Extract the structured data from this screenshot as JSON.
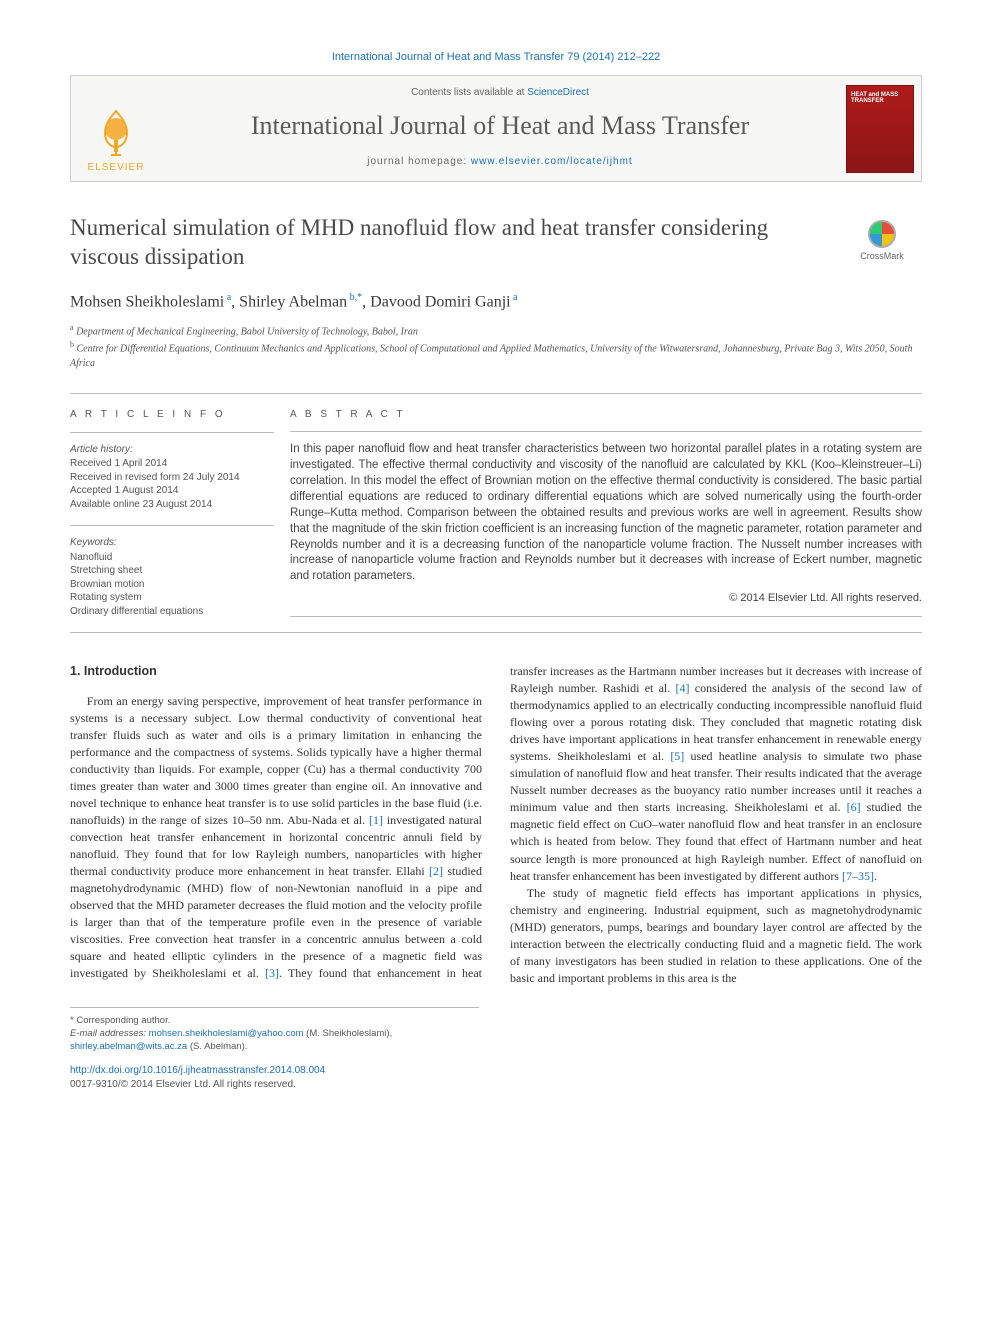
{
  "citation": "International Journal of Heat and Mass Transfer 79 (2014) 212–222",
  "header": {
    "contents_prefix": "Contents lists available at ",
    "contents_link": "ScienceDirect",
    "journal": "International Journal of Heat and Mass Transfer",
    "homepage_prefix": "journal homepage: ",
    "homepage_url": "www.elsevier.com/locate/ijhmt",
    "publisher": "ELSEVIER",
    "cover_text": "HEAT and MASS TRANSFER"
  },
  "crossmark": "CrossMark",
  "title": "Numerical simulation of MHD nanofluid flow and heat transfer considering viscous dissipation",
  "authors_html": "Mohsen Sheikholeslami<sup> a</sup>, Shirley Abelman<sup> b,*</sup>, Davood Domiri Ganji<sup> a</sup>",
  "affiliations": {
    "a": "Department of Mechanical Engineering, Babol University of Technology, Babol, Iran",
    "b": "Centre for Differential Equations, Continuum Mechanics and Applications, School of Computational and Applied Mathematics, University of the Witwatersrand, Johannesburg, Private Bag 3, Wits 2050, South Africa"
  },
  "info": {
    "heading": "A R T I C L E   I N F O",
    "history_label": "Article history:",
    "history": [
      "Received 1 April 2014",
      "Received in revised form 24 July 2014",
      "Accepted 1 August 2014",
      "Available online 23 August 2014"
    ],
    "keywords_label": "Keywords:",
    "keywords": [
      "Nanofluid",
      "Stretching sheet",
      "Brownian motion",
      "Rotating system",
      "Ordinary differential equations"
    ]
  },
  "abstract": {
    "heading": "A B S T R A C T",
    "text": "In this paper nanofluid flow and heat transfer characteristics between two horizontal parallel plates in a rotating system are investigated. The effective thermal conductivity and viscosity of the nanofluid are calculated by KKL (Koo–Kleinstreuer–Li) correlation. In this model the effect of Brownian motion on the effective thermal conductivity is considered. The basic partial differential equations are reduced to ordinary differential equations which are solved numerically using the fourth-order Runge–Kutta method. Comparison between the obtained results and previous works are well in agreement. Results show that the magnitude of the skin friction coefficient is an increasing function of the magnetic parameter, rotation parameter and Reynolds number and it is a decreasing function of the nanoparticle volume fraction. The Nusselt number increases with increase of nanoparticle volume fraction and Reynolds number but it decreases with increase of Eckert number, magnetic and rotation parameters.",
    "copyright": "© 2014 Elsevier Ltd. All rights reserved."
  },
  "body": {
    "section": "1. Introduction",
    "col1_p1": "From an energy saving perspective, improvement of heat transfer performance in systems is a necessary subject. Low thermal conductivity of conventional heat transfer fluids such as water and oils is a primary limitation in enhancing the performance and the compactness of systems. Solids typically have a higher thermal conductivity than liquids. For example, copper (Cu) has a thermal conductivity 700 times greater than water and 3000 times greater than engine oil. An innovative and novel technique to enhance heat transfer is to use solid particles in the base fluid (i.e. nanofluids) in the range of sizes 10–50 nm. Abu-Nada et al. ",
    "ref1": "[1]",
    "col1_p1b": " investigated natural convection heat transfer enhancement in horizontal concentric annuli field by nanofluid. They found that for low Rayleigh numbers, nanoparticles with higher thermal conductivity produce more enhancement in heat transfer. Ellahi ",
    "ref2": "[2]",
    "col1_p1c": " studied magnetohydrodynamic (MHD) flow of non-Newtonian nanofluid in a pipe and observed that the MHD parameter decreases the fluid motion and the velocity profile is larger than that of the temperature profile even in the presence of variable viscosities. Free convection heat transfer in a concentric annulus between a cold square and heated elliptic cylinders in the presence",
    "col2_p1a": "of a magnetic field was investigated by Sheikholeslami et al. ",
    "ref3": "[3]",
    "col2_p1b": ". They found that enhancement in heat transfer increases as the Hartmann number increases but it decreases with increase of Rayleigh number. Rashidi et al. ",
    "ref4": "[4]",
    "col2_p1c": " considered the analysis of the second law of thermodynamics applied to an electrically conducting incompressible nanofluid fluid flowing over a porous rotating disk. They concluded that magnetic rotating disk drives have important applications in heat transfer enhancement in renewable energy systems. Sheikholeslami et al. ",
    "ref5": "[5]",
    "col2_p1d": " used heatline analysis to simulate two phase simulation of nanofluid flow and heat transfer. Their results indicated that the average Nusselt number decreases as the buoyancy ratio number increases until it reaches a minimum value and then starts increasing. Sheikholeslami et al. ",
    "ref6": "[6]",
    "col2_p1e": " studied the magnetic field effect on CuO–water nanofluid flow and heat transfer in an enclosure which is heated from below. They found that effect of Hartmann number and heat source length is more pronounced at high Rayleigh number. Effect of nanofluid on heat transfer enhancement has been investigated by different authors ",
    "ref7_35": "[7–35]",
    "col2_p1f": ".",
    "col2_p2": "The study of magnetic field effects has important applications in physics, chemistry and engineering. Industrial equipment, such as magnetohydrodynamic (MHD) generators, pumps, bearings and boundary layer control are affected by the interaction between the electrically conducting fluid and a magnetic field. The work of many investigators has been studied in relation to these applications. One of the basic and important problems in this area is the"
  },
  "footer": {
    "corr": "* Corresponding author.",
    "email_label": "E-mail addresses:",
    "emails": [
      {
        "addr": "mohsen.sheikholeslami@yahoo.com",
        "who": "(M. Sheikholeslami),"
      },
      {
        "addr": "shirley.abelman@wits.ac.za",
        "who": "(S. Abelman)."
      }
    ],
    "doi": "http://dx.doi.org/10.1016/j.ijheatmasstransfer.2014.08.004",
    "issn": "0017-9310/© 2014 Elsevier Ltd. All rights reserved."
  },
  "colors": {
    "link": "#1a6fb5",
    "elsevier": "#f5a623",
    "text": "#333333",
    "muted": "#555555",
    "rule": "#bbbbbb",
    "cover": "#8c1515"
  },
  "typography": {
    "body_pt": 12,
    "title_pt": 23,
    "journal_pt": 26,
    "small_pt": 10
  }
}
